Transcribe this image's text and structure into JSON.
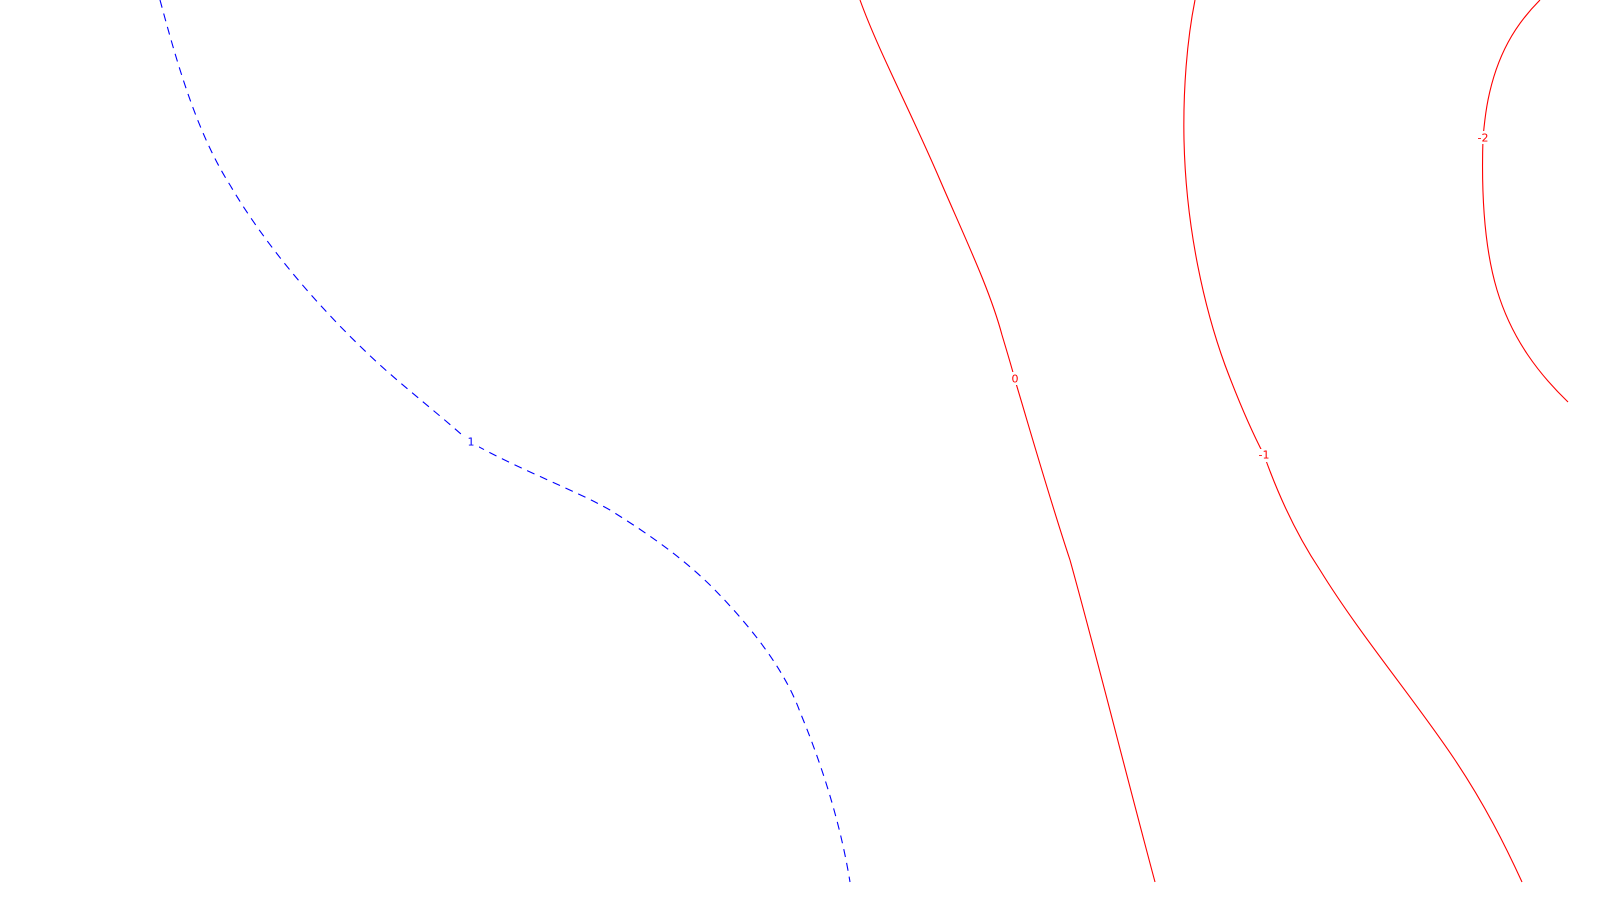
{
  "chart_data": {
    "type": "contour",
    "title": "",
    "xlabel": "",
    "ylabel": "",
    "grid": false,
    "colors": {
      "positive": "#0000ff",
      "negative": "#ff0000",
      "background": "#ffffff"
    },
    "contours": [
      {
        "level": 1,
        "label": "1",
        "color": "#0000ff",
        "style": "dashed"
      },
      {
        "level": 0,
        "label": "0",
        "color": "#ff0000",
        "style": "solid"
      },
      {
        "level": -1,
        "label": "-1",
        "color": "#ff0000",
        "style": "solid"
      },
      {
        "level": -2,
        "label": "-2",
        "color": "#ff0000",
        "style": "solid"
      }
    ]
  }
}
